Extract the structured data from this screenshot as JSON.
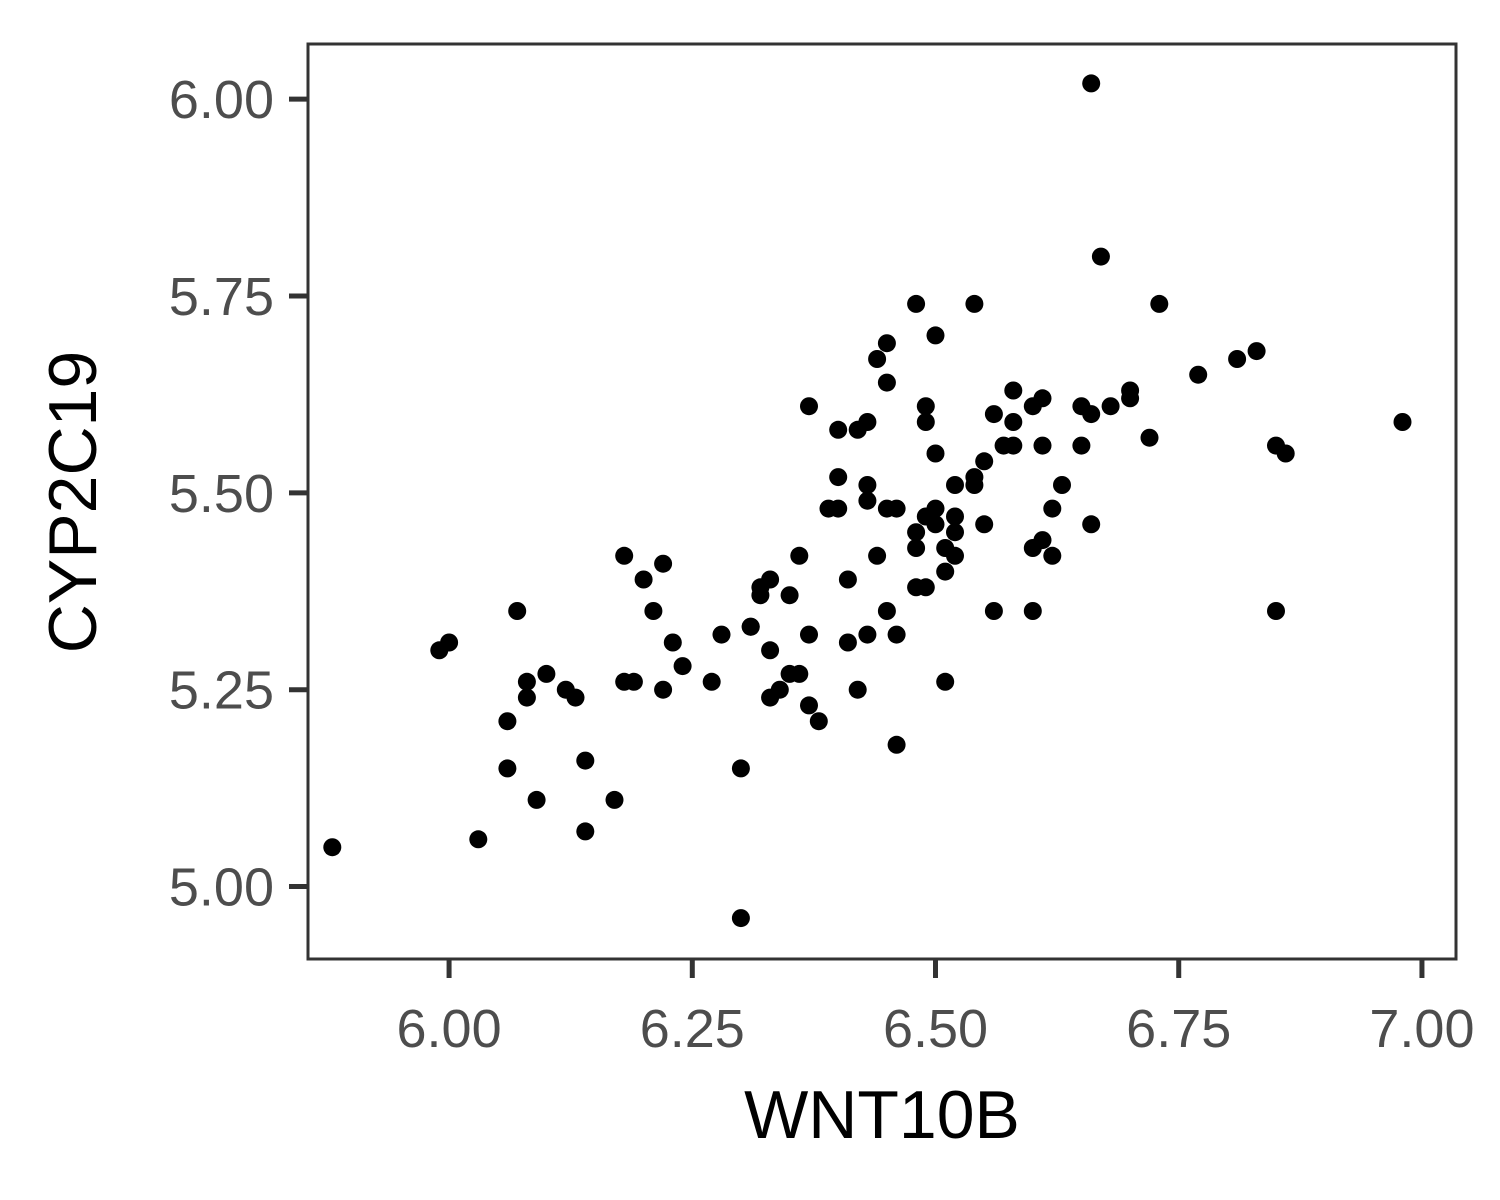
{
  "chart_data": {
    "type": "scatter",
    "xlabel": "WNT10B",
    "ylabel": "CYP2C19",
    "xlim": [
      5.855,
      7.035
    ],
    "ylim": [
      4.908,
      6.07
    ],
    "x_ticks": [
      6.0,
      6.25,
      6.5,
      6.75,
      7.0
    ],
    "y_ticks": [
      5.0,
      5.25,
      5.5,
      5.75,
      6.0
    ],
    "x_tick_labels": [
      "6.00",
      "6.25",
      "6.50",
      "6.75",
      "7.00"
    ],
    "y_tick_labels": [
      "5.00",
      "5.25",
      "5.50",
      "5.75",
      "6.00"
    ],
    "grid": false,
    "legend": "none",
    "point_color": "#000000",
    "points": [
      [
        5.88,
        5.05
      ],
      [
        5.99,
        5.3
      ],
      [
        6.0,
        5.31
      ],
      [
        6.03,
        5.06
      ],
      [
        6.06,
        5.21
      ],
      [
        6.06,
        5.15
      ],
      [
        6.07,
        5.35
      ],
      [
        6.08,
        5.26
      ],
      [
        6.08,
        5.24
      ],
      [
        6.09,
        5.11
      ],
      [
        6.1,
        5.27
      ],
      [
        6.12,
        5.25
      ],
      [
        6.13,
        5.24
      ],
      [
        6.14,
        5.07
      ],
      [
        6.14,
        5.16
      ],
      [
        6.17,
        5.11
      ],
      [
        6.18,
        5.26
      ],
      [
        6.18,
        5.42
      ],
      [
        6.19,
        5.26
      ],
      [
        6.2,
        5.39
      ],
      [
        6.21,
        5.35
      ],
      [
        6.22,
        5.25
      ],
      [
        6.22,
        5.41
      ],
      [
        6.23,
        5.31
      ],
      [
        6.24,
        5.28
      ],
      [
        6.27,
        5.26
      ],
      [
        6.28,
        5.32
      ],
      [
        6.3,
        5.15
      ],
      [
        6.3,
        4.96
      ],
      [
        6.31,
        5.33
      ],
      [
        6.31,
        5.33
      ],
      [
        6.32,
        5.37
      ],
      [
        6.32,
        5.38
      ],
      [
        6.33,
        5.39
      ],
      [
        6.33,
        5.3
      ],
      [
        6.33,
        5.24
      ],
      [
        6.34,
        5.25
      ],
      [
        6.35,
        5.27
      ],
      [
        6.35,
        5.37
      ],
      [
        6.36,
        5.27
      ],
      [
        6.36,
        5.42
      ],
      [
        6.37,
        5.32
      ],
      [
        6.37,
        5.23
      ],
      [
        6.37,
        5.61
      ],
      [
        6.38,
        5.21
      ],
      [
        6.39,
        5.48
      ],
      [
        6.4,
        5.48
      ],
      [
        6.4,
        5.52
      ],
      [
        6.4,
        5.58
      ],
      [
        6.41,
        5.31
      ],
      [
        6.41,
        5.39
      ],
      [
        6.42,
        5.25
      ],
      [
        6.42,
        5.58
      ],
      [
        6.43,
        5.51
      ],
      [
        6.43,
        5.49
      ],
      [
        6.43,
        5.59
      ],
      [
        6.43,
        5.32
      ],
      [
        6.44,
        5.42
      ],
      [
        6.44,
        5.67
      ],
      [
        6.45,
        5.35
      ],
      [
        6.45,
        5.64
      ],
      [
        6.45,
        5.69
      ],
      [
        6.45,
        5.48
      ],
      [
        6.46,
        5.48
      ],
      [
        6.46,
        5.32
      ],
      [
        6.46,
        5.18
      ],
      [
        6.48,
        5.74
      ],
      [
        6.48,
        5.45
      ],
      [
        6.48,
        5.43
      ],
      [
        6.48,
        5.38
      ],
      [
        6.49,
        5.61
      ],
      [
        6.49,
        5.59
      ],
      [
        6.49,
        5.47
      ],
      [
        6.49,
        5.38
      ],
      [
        6.5,
        5.7
      ],
      [
        6.5,
        5.55
      ],
      [
        6.5,
        5.48
      ],
      [
        6.5,
        5.46
      ],
      [
        6.51,
        5.43
      ],
      [
        6.51,
        5.4
      ],
      [
        6.51,
        5.26
      ],
      [
        6.52,
        5.42
      ],
      [
        6.52,
        5.51
      ],
      [
        6.52,
        5.47
      ],
      [
        6.52,
        5.45
      ],
      [
        6.54,
        5.74
      ],
      [
        6.54,
        5.52
      ],
      [
        6.54,
        5.51
      ],
      [
        6.55,
        5.46
      ],
      [
        6.55,
        5.54
      ],
      [
        6.56,
        5.6
      ],
      [
        6.56,
        5.35
      ],
      [
        6.57,
        5.56
      ],
      [
        6.58,
        5.63
      ],
      [
        6.58,
        5.59
      ],
      [
        6.58,
        5.56
      ],
      [
        6.6,
        5.61
      ],
      [
        6.6,
        5.43
      ],
      [
        6.6,
        5.35
      ],
      [
        6.61,
        5.62
      ],
      [
        6.61,
        5.56
      ],
      [
        6.61,
        5.44
      ],
      [
        6.62,
        5.48
      ],
      [
        6.62,
        5.42
      ],
      [
        6.63,
        5.51
      ],
      [
        6.65,
        5.61
      ],
      [
        6.65,
        5.56
      ],
      [
        6.66,
        5.6
      ],
      [
        6.66,
        6.02
      ],
      [
        6.66,
        5.46
      ],
      [
        6.67,
        5.8
      ],
      [
        6.68,
        5.61
      ],
      [
        6.7,
        5.62
      ],
      [
        6.7,
        5.63
      ],
      [
        6.72,
        5.57
      ],
      [
        6.73,
        5.74
      ],
      [
        6.77,
        5.65
      ],
      [
        6.81,
        5.67
      ],
      [
        6.83,
        5.68
      ],
      [
        6.85,
        5.56
      ],
      [
        6.85,
        5.35
      ],
      [
        6.86,
        5.55
      ],
      [
        6.98,
        5.59
      ]
    ]
  }
}
